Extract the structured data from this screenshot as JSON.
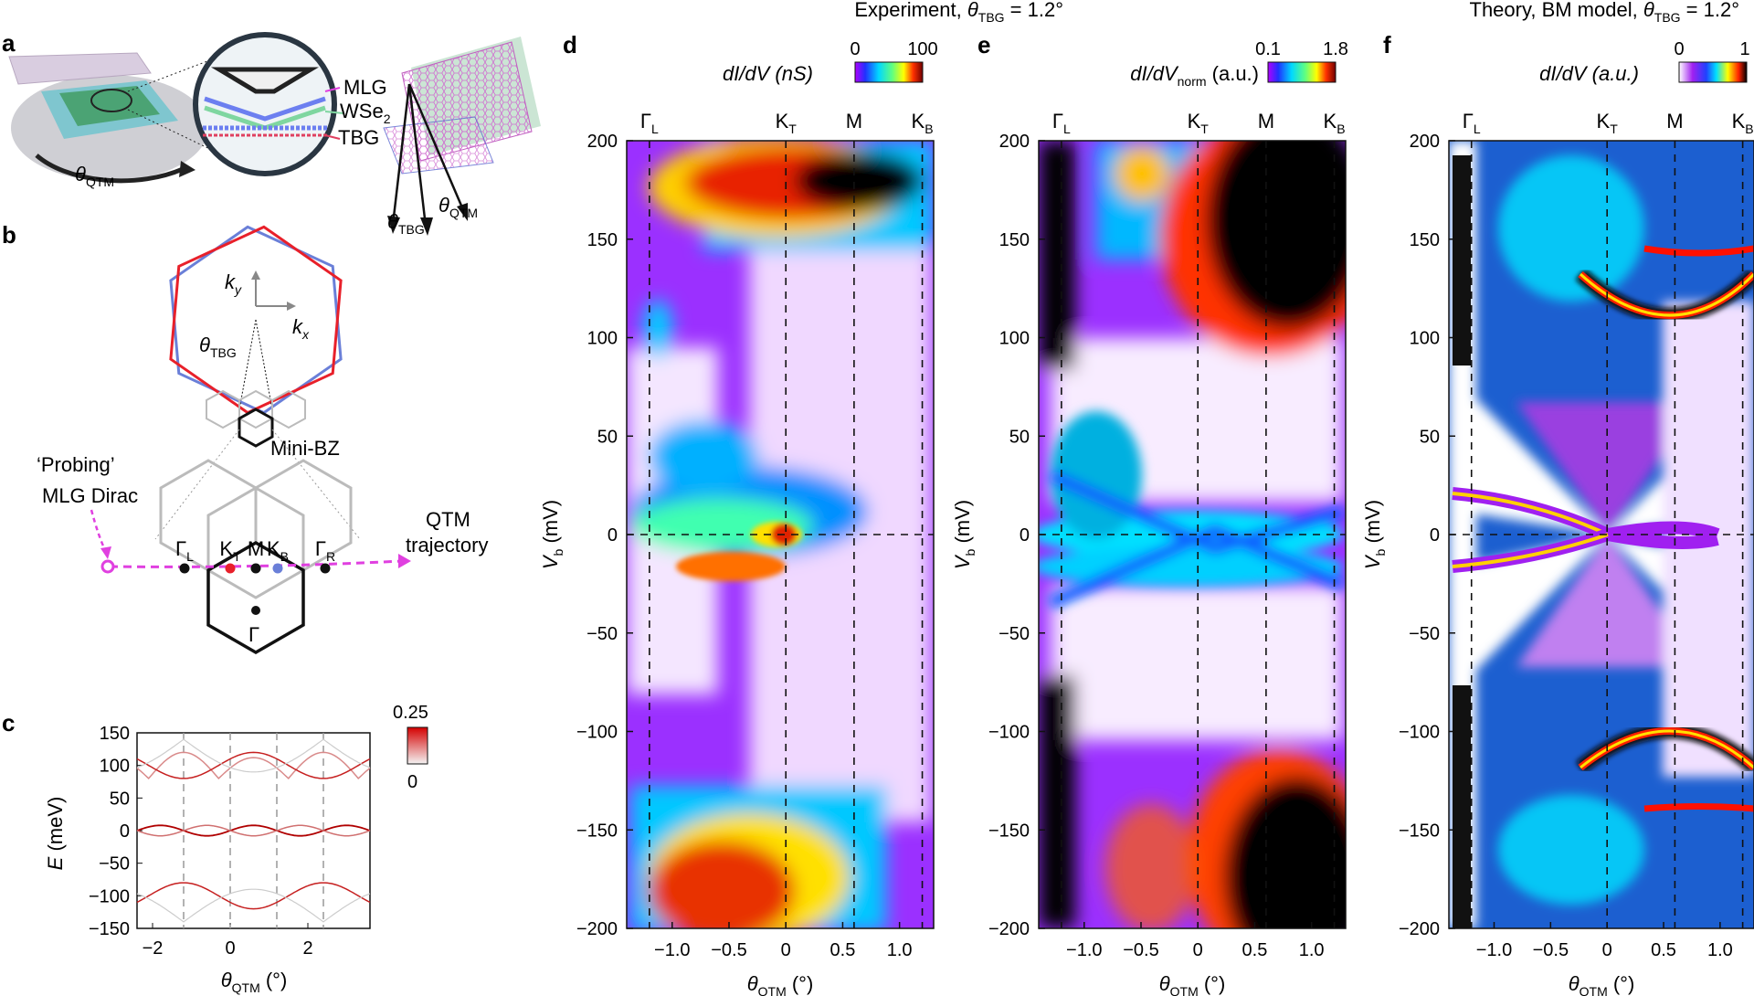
{
  "panels": {
    "a": {
      "label": "a",
      "theta_qtm": "θ",
      "theta_qtm_sub": "QTM",
      "mlg": "MLG",
      "wse2": "WSe",
      "wse2_sub": "2",
      "tbg": "TBG",
      "theta_tbg": "θ",
      "theta_tbg_sub": "TBG",
      "theta_qtm2": "θ",
      "theta_qtm2_sub": "QTM"
    },
    "b": {
      "label": "b",
      "ky": "k",
      "ky_sub": "y",
      "kx": "k",
      "kx_sub": "x",
      "theta": "θ",
      "theta_sub": "TBG",
      "minibz": "Mini-BZ",
      "probing_1": "‘Probing’",
      "probing_2": "MLG Dirac",
      "qtm_1": "QTM",
      "qtm_2": "trajectory",
      "points": [
        {
          "main": "Γ",
          "sub": "L",
          "color": "#111111"
        },
        {
          "main": "K",
          "sub": "T",
          "color": "#e8202a"
        },
        {
          "main": "M",
          "sub": "",
          "color": "#111111"
        },
        {
          "main": "K",
          "sub": "B",
          "color": "#6a7fd8"
        },
        {
          "main": "Γ",
          "sub": "R",
          "color": "#111111"
        }
      ],
      "gamma": "Γ"
    },
    "c": {
      "label": "c",
      "ylabel": "E",
      "ylabel_unit": " (meV)",
      "xlabel": "θ",
      "xlabel_sub": "QTM",
      "xlabel_unit": " (°)",
      "yticks": [
        "150",
        "100",
        "50",
        "0",
        "−50",
        "−100",
        "−150"
      ],
      "xticks": [
        "−2",
        "0",
        "2"
      ],
      "cbar_max": "0.25",
      "cbar_min": "0"
    },
    "d": {
      "label": "d",
      "title_pre": "Experiment, ",
      "title_theta": "θ",
      "title_sub": "TBG",
      "title_post": " = 1.2°",
      "cbar_label": "dI/dV (nS)",
      "cbar_min": "0",
      "cbar_max": "100"
    },
    "e": {
      "label": "e",
      "cbar_label_pre": "dI/dV",
      "cbar_label_sub": "norm",
      "cbar_label_post": " (a.u.)",
      "cbar_min": "0.1",
      "cbar_max": "1.8"
    },
    "f": {
      "label": "f",
      "title_pre": "Theory, BM model, ",
      "title_theta": "θ",
      "title_sub": "TBG",
      "title_post": " = 1.2°",
      "cbar_label": "dI/dV (a.u.)",
      "cbar_min": "0",
      "cbar_max": "1"
    }
  },
  "maps": {
    "ylabel": "V",
    "ylabel_sub": "b",
    "ylabel_unit": " (mV)",
    "xlabel": "θ",
    "xlabel_sub": "QTM",
    "xlabel_unit": " (°)",
    "yticks": [
      "200",
      "150",
      "100",
      "50",
      "0",
      "−50",
      "−100",
      "−150",
      "−200"
    ],
    "xticks": [
      "−1.0",
      "−0.5",
      "0",
      "0.5",
      "1.0"
    ],
    "top_labels": [
      {
        "main": "Γ",
        "sub": "L"
      },
      {
        "main": "K",
        "sub": "T"
      },
      {
        "main": "M",
        "sub": ""
      },
      {
        "main": "K",
        "sub": "B"
      }
    ]
  },
  "chart_data": [
    {
      "type": "line",
      "panel": "c",
      "xlabel": "θQTM (°)",
      "ylabel": "E (meV)",
      "xlim": [
        -2.4,
        3.6
      ],
      "ylim": [
        -150,
        150
      ],
      "reference_lines_x": [
        -1.2,
        0,
        1.2,
        2.4
      ],
      "colorbar": {
        "min": 0,
        "max": 0.25
      }
    },
    {
      "type": "heatmap",
      "panel": "d",
      "xlabel": "θQTM (°)",
      "ylabel": "Vb (mV)",
      "xlim": [
        -1.4,
        1.3
      ],
      "ylim": [
        -200,
        200
      ],
      "reference_lines_x": [
        -1.2,
        0,
        0.6,
        1.2
      ],
      "reference_lines_y": [
        0
      ],
      "colorbar": {
        "label": "dI/dV (nS)",
        "min": 0,
        "max": 100
      }
    },
    {
      "type": "heatmap",
      "panel": "e",
      "xlabel": "θQTM (°)",
      "ylabel": "Vb (mV)",
      "xlim": [
        -1.4,
        1.3
      ],
      "ylim": [
        -200,
        200
      ],
      "reference_lines_x": [
        -1.2,
        0,
        0.6,
        1.2
      ],
      "reference_lines_y": [
        0
      ],
      "colorbar": {
        "label": "dI/dVnorm (a.u.)",
        "min": 0.1,
        "max": 1.8
      }
    },
    {
      "type": "heatmap",
      "panel": "f",
      "xlabel": "θQTM (°)",
      "ylabel": "Vb (mV)",
      "xlim": [
        -1.4,
        1.3
      ],
      "ylim": [
        -200,
        200
      ],
      "reference_lines_x": [
        -1.2,
        0,
        0.6,
        1.2
      ],
      "reference_lines_y": [
        0
      ],
      "colorbar": {
        "label": "dI/dV (a.u.)",
        "min": 0,
        "max": 1
      }
    }
  ]
}
